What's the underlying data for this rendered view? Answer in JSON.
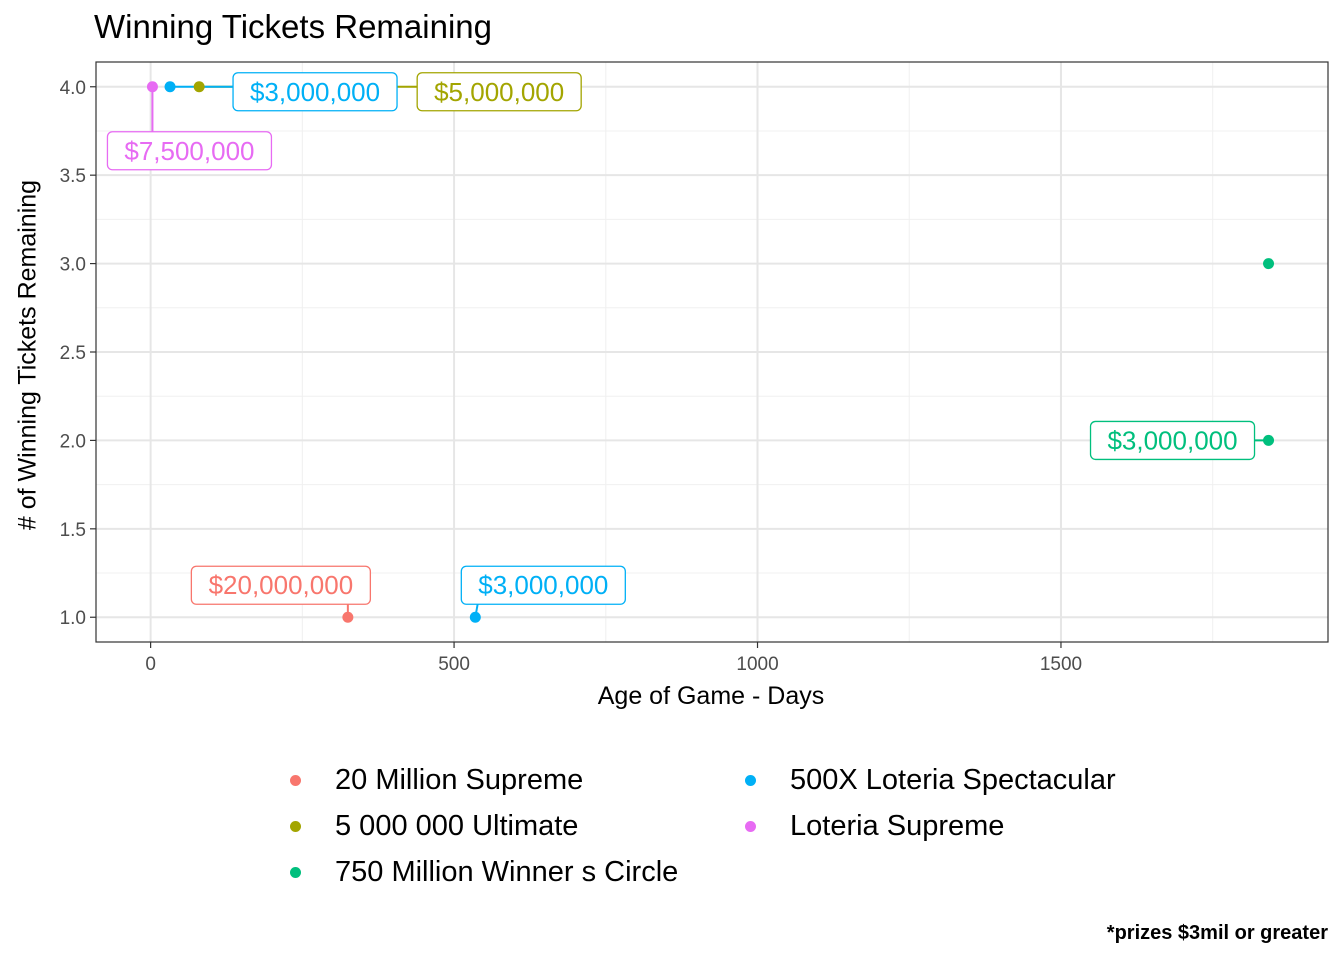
{
  "chart_data": {
    "type": "scatter",
    "title": "Winning Tickets Remaining",
    "xlabel": "Age of Game - Days",
    "ylabel": "# of Winning Tickets Remaining",
    "xlim": [
      -90,
      1940
    ],
    "ylim": [
      0.86,
      4.14
    ],
    "x_ticks": [
      0,
      500,
      1000,
      1500
    ],
    "y_ticks": [
      1.0,
      1.5,
      2.0,
      2.5,
      3.0,
      3.5,
      4.0
    ],
    "grid": true,
    "legend_position": "bottom",
    "caption": "*prizes $3mil or greater",
    "series": [
      {
        "name": "20 Million Supreme",
        "color": "#F8766D",
        "points": [
          {
            "x": 325,
            "y": 1.0,
            "label": "$20,000,000"
          }
        ]
      },
      {
        "name": "5 000 000 Ultimate",
        "color": "#A3A500",
        "points": [
          {
            "x": 80,
            "y": 4.0,
            "label": "$5,000,000"
          }
        ]
      },
      {
        "name": "750 Million Winner s Circle",
        "color": "#00BF7D",
        "points": [
          {
            "x": 1842,
            "y": 3.0,
            "label": ""
          },
          {
            "x": 1842,
            "y": 2.0,
            "label": "$3,000,000"
          }
        ]
      },
      {
        "name": "500X Loteria Spectacular",
        "color": "#00B0F6",
        "points": [
          {
            "x": 32,
            "y": 4.0,
            "label": "$3,000,000"
          },
          {
            "x": 535,
            "y": 1.0,
            "label": "$3,000,000"
          }
        ]
      },
      {
        "name": "Loteria Supreme",
        "color": "#E76BF3",
        "points": [
          {
            "x": 3,
            "y": 4.0,
            "label": "$7,500,000"
          }
        ]
      }
    ]
  }
}
